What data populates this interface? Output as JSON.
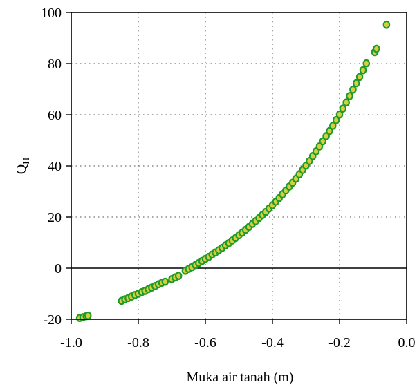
{
  "chart_data": {
    "type": "scatter",
    "title": "",
    "xlabel": "Muka air tanah (m)",
    "ylabel_main": "Q",
    "ylabel_sub": "H",
    "xlim": [
      -1.0,
      0.0
    ],
    "ylim": [
      -20,
      100
    ],
    "xticks": [
      -1.0,
      -0.8,
      -0.6,
      -0.4,
      -0.2,
      0.0
    ],
    "yticks": [
      -20,
      0,
      20,
      40,
      60,
      80,
      100
    ],
    "xtick_labels": [
      "-1.0",
      "-0.8",
      "-0.6",
      "-0.4",
      "-0.2",
      "0.0"
    ],
    "ytick_labels": [
      "-20",
      "0",
      "20",
      "40",
      "60",
      "80",
      "100"
    ],
    "grid": true,
    "grid_style": "dotted",
    "marker_fill": "#d4cf3a",
    "marker_edge": "#1d9a2e",
    "series": [
      {
        "points": [
          [
            -0.975,
            -19.5
          ],
          [
            -0.965,
            -19.2
          ],
          [
            -0.955,
            -18.8
          ],
          [
            -0.95,
            -18.6
          ],
          [
            -0.85,
            -12.8
          ],
          [
            -0.84,
            -12.2
          ],
          [
            -0.83,
            -11.7
          ],
          [
            -0.82,
            -11.1
          ],
          [
            -0.81,
            -10.5
          ],
          [
            -0.8,
            -10.0
          ],
          [
            -0.79,
            -9.4
          ],
          [
            -0.78,
            -8.9
          ],
          [
            -0.77,
            -8.2
          ],
          [
            -0.76,
            -7.6
          ],
          [
            -0.75,
            -7.0
          ],
          [
            -0.74,
            -6.3
          ],
          [
            -0.73,
            -5.7
          ],
          [
            -0.72,
            -5.3
          ],
          [
            -0.7,
            -4.3
          ],
          [
            -0.69,
            -3.6
          ],
          [
            -0.68,
            -3.0
          ],
          [
            -0.66,
            -1.0
          ],
          [
            -0.65,
            -0.3
          ],
          [
            -0.64,
            0.4
          ],
          [
            -0.63,
            1.2
          ],
          [
            -0.62,
            2.0
          ],
          [
            -0.61,
            2.8
          ],
          [
            -0.6,
            3.6
          ],
          [
            -0.59,
            4.4
          ],
          [
            -0.58,
            5.3
          ],
          [
            -0.57,
            6.1
          ],
          [
            -0.56,
            7.0
          ],
          [
            -0.55,
            7.9
          ],
          [
            -0.54,
            8.9
          ],
          [
            -0.53,
            9.8
          ],
          [
            -0.52,
            10.8
          ],
          [
            -0.51,
            11.8
          ],
          [
            -0.5,
            12.9
          ],
          [
            -0.49,
            13.9
          ],
          [
            -0.48,
            15.0
          ],
          [
            -0.47,
            16.1
          ],
          [
            -0.46,
            17.3
          ],
          [
            -0.45,
            18.4
          ],
          [
            -0.44,
            19.6
          ],
          [
            -0.43,
            20.8
          ],
          [
            -0.42,
            22.0
          ],
          [
            -0.41,
            23.3
          ],
          [
            -0.4,
            24.6
          ],
          [
            -0.39,
            26.0
          ],
          [
            -0.38,
            27.4
          ],
          [
            -0.37,
            28.9
          ],
          [
            -0.36,
            30.4
          ],
          [
            -0.35,
            31.9
          ],
          [
            -0.34,
            33.4
          ],
          [
            -0.33,
            35.0
          ],
          [
            -0.32,
            36.7
          ],
          [
            -0.31,
            38.4
          ],
          [
            -0.3,
            40.1
          ],
          [
            -0.29,
            41.9
          ],
          [
            -0.28,
            43.8
          ],
          [
            -0.27,
            45.7
          ],
          [
            -0.26,
            47.6
          ],
          [
            -0.25,
            49.6
          ],
          [
            -0.24,
            51.6
          ],
          [
            -0.23,
            53.6
          ],
          [
            -0.22,
            55.7
          ],
          [
            -0.21,
            57.9
          ],
          [
            -0.2,
            60.1
          ],
          [
            -0.19,
            62.4
          ],
          [
            -0.18,
            64.8
          ],
          [
            -0.17,
            67.3
          ],
          [
            -0.16,
            69.8
          ],
          [
            -0.15,
            72.3
          ],
          [
            -0.14,
            74.8
          ],
          [
            -0.13,
            77.4
          ],
          [
            -0.12,
            80.1
          ],
          [
            -0.095,
            84.5
          ],
          [
            -0.09,
            85.8
          ],
          [
            -0.06,
            95.2
          ]
        ]
      }
    ]
  }
}
